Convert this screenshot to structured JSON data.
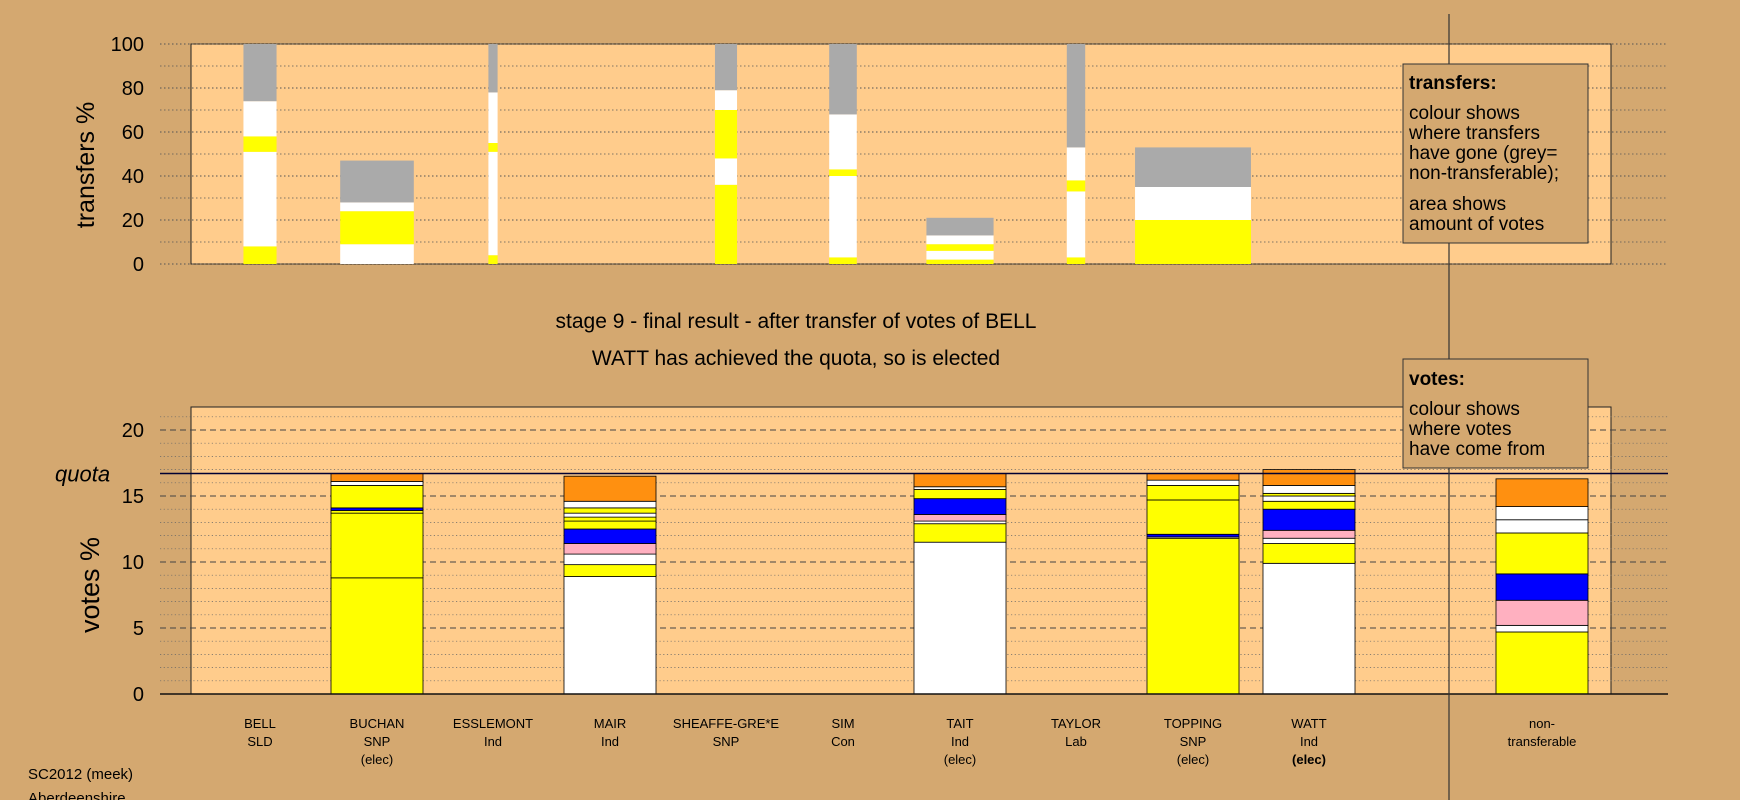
{
  "footer": {
    "line1": "SC2012 (meek)",
    "line2": "Aberdeenshire"
  },
  "chart_data": [
    {
      "type": "bar",
      "panel": "transfers",
      "ylabel": "transfers %",
      "ylim": [
        0,
        100
      ],
      "yticks": [
        0,
        20,
        40,
        60,
        80,
        100
      ],
      "grid": true,
      "legend": {
        "title": "transfers:",
        "lines1": [
          "colour shows",
          "where transfers",
          "have gone (grey=",
          "non-transferable);"
        ],
        "lines2": [
          "area shows",
          "amount of votes"
        ]
      },
      "columns": [
        {
          "candidate": "BELL",
          "width": 0.36,
          "segments": [
            {
              "color": "#FFFF00",
              "from": 0,
              "to": 8
            },
            {
              "color": "#FFFFFF",
              "from": 8,
              "to": 51
            },
            {
              "color": "#FFFF00",
              "from": 51,
              "to": 58
            },
            {
              "color": "#FFFFFF",
              "from": 58,
              "to": 74
            },
            {
              "color": "#AAAAAA",
              "from": 74,
              "to": 100
            }
          ]
        },
        {
          "candidate": "BUCHAN",
          "width": 0.8,
          "segments": [
            {
              "color": "#FFFFFF",
              "from": 0,
              "to": 9
            },
            {
              "color": "#FFFF00",
              "from": 9,
              "to": 24
            },
            {
              "color": "#FFFFFF",
              "from": 24,
              "to": 28
            },
            {
              "color": "#AAAAAA",
              "from": 28,
              "to": 47
            }
          ]
        },
        {
          "candidate": "ESSLEMONT",
          "width": 0.1,
          "segments": [
            {
              "color": "#FFFF00",
              "from": 0,
              "to": 4
            },
            {
              "color": "#FFFFFF",
              "from": 4,
              "to": 51
            },
            {
              "color": "#FFFF00",
              "from": 51,
              "to": 55
            },
            {
              "color": "#FFFFFF",
              "from": 55,
              "to": 78
            },
            {
              "color": "#AAAAAA",
              "from": 78,
              "to": 100
            }
          ]
        },
        {
          "candidate": "SHEAFFE-GRE*E",
          "width": 0.24,
          "segments": [
            {
              "color": "#FFFF00",
              "from": 0,
              "to": 36
            },
            {
              "color": "#FFFFFF",
              "from": 36,
              "to": 48
            },
            {
              "color": "#FFFF00",
              "from": 48,
              "to": 70
            },
            {
              "color": "#FFFFFF",
              "from": 70,
              "to": 79
            },
            {
              "color": "#AAAAAA",
              "from": 79,
              "to": 100
            }
          ]
        },
        {
          "candidate": "SIM",
          "width": 0.3,
          "segments": [
            {
              "color": "#FFFF00",
              "from": 0,
              "to": 3
            },
            {
              "color": "#FFFFFF",
              "from": 3,
              "to": 40
            },
            {
              "color": "#FFFF00",
              "from": 40,
              "to": 43
            },
            {
              "color": "#FFFFFF",
              "from": 43,
              "to": 68
            },
            {
              "color": "#AAAAAA",
              "from": 68,
              "to": 100
            }
          ]
        },
        {
          "candidate": "TAIT",
          "width": 0.73,
          "segments": [
            {
              "color": "#FFFF00",
              "from": 0,
              "to": 2
            },
            {
              "color": "#FFFFFF",
              "from": 2,
              "to": 6
            },
            {
              "color": "#FFFF00",
              "from": 6,
              "to": 9
            },
            {
              "color": "#FFFFFF",
              "from": 9,
              "to": 13
            },
            {
              "color": "#AAAAAA",
              "from": 13,
              "to": 21
            }
          ]
        },
        {
          "candidate": "TAYLOR",
          "width": 0.2,
          "segments": [
            {
              "color": "#FFFF00",
              "from": 0,
              "to": 3
            },
            {
              "color": "#FFFFFF",
              "from": 3,
              "to": 33
            },
            {
              "color": "#FFFF00",
              "from": 33,
              "to": 38
            },
            {
              "color": "#FFFFFF",
              "from": 38,
              "to": 53
            },
            {
              "color": "#AAAAAA",
              "from": 53,
              "to": 100
            }
          ]
        },
        {
          "candidate": "TOPPING",
          "width": 1.26,
          "segments": [
            {
              "color": "#FFFF00",
              "from": 0,
              "to": 20
            },
            {
              "color": "#FFFFFF",
              "from": 20,
              "to": 35
            },
            {
              "color": "#AAAAAA",
              "from": 35,
              "to": 53
            }
          ]
        }
      ]
    },
    {
      "type": "bar",
      "panel": "votes",
      "title_lines": [
        "stage 9 - final result - after transfer of votes of BELL",
        "WATT has achieved the quota, so is elected"
      ],
      "ylabel": "votes %",
      "ylim": [
        0,
        22
      ],
      "yticks": [
        0,
        5,
        10,
        15,
        20
      ],
      "grid": true,
      "quota": 16.7,
      "quota_label": "quota",
      "legend": {
        "title": "votes:",
        "lines1": [
          "colour shows",
          "where votes",
          "have come from"
        ]
      },
      "categories": [
        {
          "name": "BELL",
          "party": "SLD",
          "status": ""
        },
        {
          "name": "BUCHAN",
          "party": "SNP",
          "status": "(elec)"
        },
        {
          "name": "ESSLEMONT",
          "party": "Ind",
          "status": ""
        },
        {
          "name": "MAIR",
          "party": "Ind",
          "status": ""
        },
        {
          "name": "SHEAFFE-GRE*E",
          "party": "SNP",
          "status": ""
        },
        {
          "name": "SIM",
          "party": "Con",
          "status": ""
        },
        {
          "name": "TAIT",
          "party": "Ind",
          "status": "(elec)"
        },
        {
          "name": "TAYLOR",
          "party": "Lab",
          "status": ""
        },
        {
          "name": "TOPPING",
          "party": "SNP",
          "status": "(elec)"
        },
        {
          "name": "WATT",
          "party": "Ind",
          "status": "(elec)",
          "status_bold": true
        },
        {
          "name": "non-",
          "party": "transferable",
          "status": ""
        }
      ],
      "stacks": [
        [],
        [
          {
            "color": "#FFFF00",
            "from": 0,
            "to": 8.8
          },
          {
            "color": "#FFFF00",
            "from": 8.8,
            "to": 13.7
          },
          {
            "color": "#FFFF00",
            "from": 13.7,
            "to": 13.9
          },
          {
            "color": "#0000FF",
            "from": 13.9,
            "to": 14.1
          },
          {
            "color": "#FFFF00",
            "from": 14.1,
            "to": 15.8
          },
          {
            "color": "#FFFFFF",
            "from": 15.8,
            "to": 16.1
          },
          {
            "color": "#FF9010",
            "from": 16.1,
            "to": 16.7
          }
        ],
        [],
        [
          {
            "color": "#FFFFFF",
            "from": 0,
            "to": 8.9
          },
          {
            "color": "#FFFF00",
            "from": 8.9,
            "to": 9.8
          },
          {
            "color": "#FFFFFF",
            "from": 9.8,
            "to": 10.6
          },
          {
            "color": "#FFB0C0",
            "from": 10.6,
            "to": 11.4
          },
          {
            "color": "#0000FF",
            "from": 11.4,
            "to": 12.5
          },
          {
            "color": "#FFFF00",
            "from": 12.5,
            "to": 13.1
          },
          {
            "color": "#FFFF00",
            "from": 13.1,
            "to": 13.4
          },
          {
            "color": "#FFFFFF",
            "from": 13.4,
            "to": 13.7
          },
          {
            "color": "#FFFF00",
            "from": 13.7,
            "to": 14.1
          },
          {
            "color": "#FFFFFF",
            "from": 14.1,
            "to": 14.6
          },
          {
            "color": "#FF9010",
            "from": 14.6,
            "to": 16.5
          }
        ],
        [],
        [],
        [
          {
            "color": "#FFFFFF",
            "from": 0,
            "to": 11.5
          },
          {
            "color": "#FFFF00",
            "from": 11.5,
            "to": 12.9
          },
          {
            "color": "#FFFFFF",
            "from": 12.9,
            "to": 13.1
          },
          {
            "color": "#FFB0C0",
            "from": 13.1,
            "to": 13.6
          },
          {
            "color": "#0000FF",
            "from": 13.6,
            "to": 14.8
          },
          {
            "color": "#FFFF00",
            "from": 14.8,
            "to": 15.5
          },
          {
            "color": "#FFFFFF",
            "from": 15.5,
            "to": 15.7
          },
          {
            "color": "#FF9010",
            "from": 15.7,
            "to": 16.7
          }
        ],
        [],
        [
          {
            "color": "#FFFF00",
            "from": 0,
            "to": 11.8
          },
          {
            "color": "#FFFFFF",
            "from": 11.8,
            "to": 11.9
          },
          {
            "color": "#0000FF",
            "from": 11.9,
            "to": 12.1
          },
          {
            "color": "#FFFF00",
            "from": 12.1,
            "to": 14.7
          },
          {
            "color": "#FFFF00",
            "from": 14.7,
            "to": 15.8
          },
          {
            "color": "#FFFFFF",
            "from": 15.8,
            "to": 16.2
          },
          {
            "color": "#FF9010",
            "from": 16.2,
            "to": 16.7
          }
        ],
        [
          {
            "color": "#FFFFFF",
            "from": 0,
            "to": 9.9
          },
          {
            "color": "#FFFF00",
            "from": 9.9,
            "to": 11.4
          },
          {
            "color": "#FFFFFF",
            "from": 11.4,
            "to": 11.8
          },
          {
            "color": "#FFB0C0",
            "from": 11.8,
            "to": 12.4
          },
          {
            "color": "#0000FF",
            "from": 12.4,
            "to": 14.0
          },
          {
            "color": "#FFFF00",
            "from": 14.0,
            "to": 14.6
          },
          {
            "color": "#FFFFFF",
            "from": 14.6,
            "to": 15.0
          },
          {
            "color": "#FFFF00",
            "from": 15.0,
            "to": 15.2
          },
          {
            "color": "#FFFFFF",
            "from": 15.2,
            "to": 15.8
          },
          {
            "color": "#FF9010",
            "from": 15.8,
            "to": 17.0
          }
        ],
        [
          {
            "color": "#FFFF00",
            "from": 0,
            "to": 4.7
          },
          {
            "color": "#FFFFFF",
            "from": 4.7,
            "to": 5.2
          },
          {
            "color": "#FFB0C0",
            "from": 5.2,
            "to": 7.1
          },
          {
            "color": "#0000FF",
            "from": 7.1,
            "to": 9.1
          },
          {
            "color": "#FFFF00",
            "from": 9.1,
            "to": 12.2
          },
          {
            "color": "#FFFFFF",
            "from": 12.2,
            "to": 13.2
          },
          {
            "color": "#FFFFFF",
            "from": 13.2,
            "to": 14.2
          },
          {
            "color": "#FF9010",
            "from": 14.2,
            "to": 16.3
          }
        ]
      ]
    }
  ]
}
